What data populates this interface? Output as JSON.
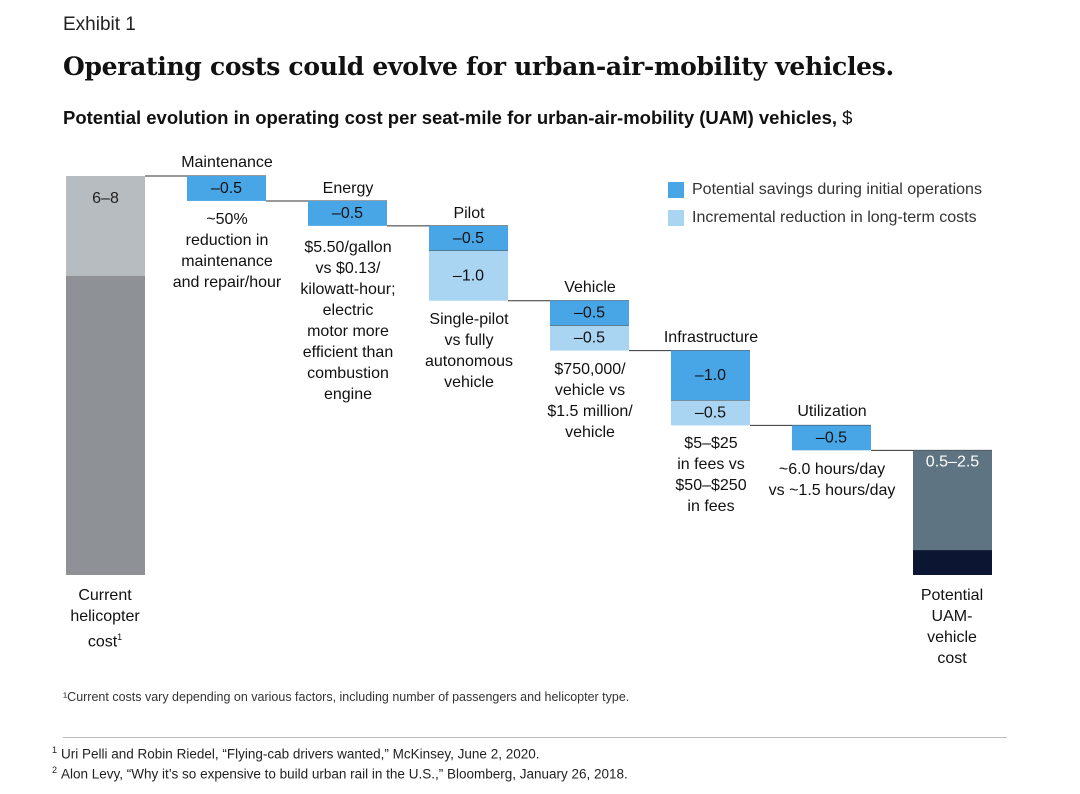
{
  "exhibit": "Exhibit 1",
  "headline": "Operating costs could evolve for urban-air-mobility vehicles.",
  "subtitle": "Potential evolution in operating cost per seat-mile for urban-air-mobility (UAM) vehicles,",
  "subtitle_unit": "$",
  "legend": {
    "savings": "Potential savings during initial operations",
    "reduction": "Incremental reduction in long-term costs"
  },
  "colors": {
    "savings": "#49a6e6",
    "reduction": "#a9d4f2",
    "helicopter_top": "#b6bcc0",
    "helicopter_bottom": "#8e9195",
    "uam_top": "#5f7482",
    "uam_bottom": "#0c1633"
  },
  "chart_data": {
    "type": "waterfall",
    "title": "Potential evolution in operating cost per seat-mile for urban-air-mobility (UAM) vehicles, $",
    "start": {
      "category": "Current helicopter cost",
      "value_label": "6–8",
      "range": [
        6,
        8
      ]
    },
    "steps": [
      {
        "category": "Maintenance",
        "savings": -0.5,
        "reduction": null,
        "note": "~50% reduction in maintenance and repair/hour"
      },
      {
        "category": "Energy",
        "savings": -0.5,
        "reduction": null,
        "note": "$5.50/gallon vs $0.13/kilowatt-hour; electric motor more efficient than combustion engine"
      },
      {
        "category": "Pilot",
        "savings": -0.5,
        "reduction": -1.0,
        "note": "Single-pilot vs fully autonomous vehicle"
      },
      {
        "category": "Vehicle",
        "savings": -0.5,
        "reduction": -0.5,
        "note": "$750,000/vehicle vs $1.5 million/vehicle"
      },
      {
        "category": "Infrastructure",
        "savings": -1.0,
        "reduction": -0.5,
        "note": "$5–$25 in fees vs $50–$250 in fees"
      },
      {
        "category": "Utilization",
        "savings": -0.5,
        "reduction": null,
        "note": "~6.0 hours/day vs ~1.5 hours/day"
      }
    ],
    "end": {
      "category": "Potential UAM-vehicle cost",
      "value_label": "0.5–2.5",
      "range": [
        0.5,
        2.5
      ]
    }
  },
  "labels": {
    "helicopter_lines": [
      "Current",
      "helicopter",
      "cost"
    ],
    "helicopter_sup": "1",
    "uam_lines": [
      "Potential",
      "UAM-",
      "vehicle",
      "cost"
    ],
    "maintenance_lines": [
      "~50%",
      "reduction in",
      "maintenance",
      "and repair/hour"
    ],
    "energy_lines": [
      "$5.50/gallon",
      "vs $0.13/",
      "kilowatt-hour;",
      "electric",
      "motor more",
      "efficient than",
      "combustion",
      "engine"
    ],
    "pilot_lines": [
      "Single-pilot",
      "vs fully",
      "autonomous",
      "vehicle"
    ],
    "vehicle_lines": [
      "$750,000/",
      "vehicle vs",
      "$1.5 million/",
      "vehicle"
    ],
    "infrastructure_lines": [
      "$5–$25",
      "in fees vs",
      "$50–$250",
      "in fees"
    ],
    "utilization_lines": [
      "~6.0 hours/day",
      "vs ~1.5 hours/day"
    ],
    "display_values": {
      "maintenance": "–0.5",
      "energy": "–0.5",
      "pilot_savings": "–0.5",
      "pilot_reduction": "–1.0",
      "vehicle_savings": "–0.5",
      "vehicle_reduction": "–0.5",
      "infrastructure_savings": "–1.0",
      "infrastructure_reduction": "–0.5",
      "utilization": "–0.5"
    }
  },
  "footnote": "¹Current costs vary depending on various factors, including number of passengers and helicopter type.",
  "sources": [
    {
      "num": "1",
      "text": "Uri Pelli and Robin Riedel, “Flying-cab drivers wanted,” McKinsey, June 2, 2020."
    },
    {
      "num": "2",
      "text": "Alon Levy, “Why it’s so expensive to build urban rail in the U.S.,” Bloomberg, January 26, 2018."
    }
  ]
}
